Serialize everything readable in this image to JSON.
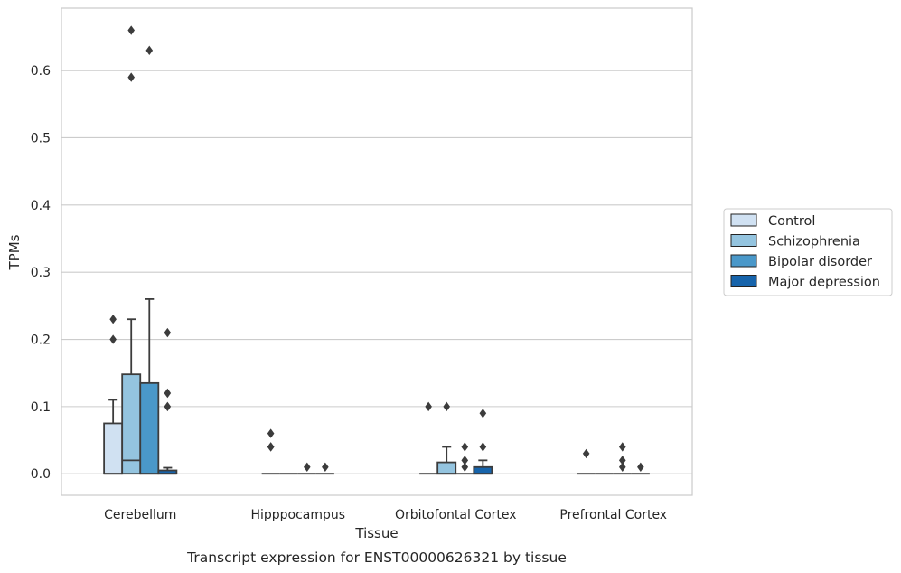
{
  "chart_data": {
    "type": "box",
    "title": "",
    "caption": "Transcript expression for ENST00000626321 by tissue",
    "xlabel": "Tissue",
    "ylabel": "TPMs",
    "ylim": [
      -0.032,
      0.693
    ],
    "yticks": [
      "0.0",
      "0.1",
      "0.2",
      "0.3",
      "0.4",
      "0.5",
      "0.6"
    ],
    "grid": "horizontal",
    "legend_position": "right",
    "categories": [
      "Cerebellum",
      "Hipppocampus",
      "Orbitofontal Cortex",
      "Prefrontal Cortex"
    ],
    "series": [
      {
        "name": "Control",
        "color": "#d0e1f2",
        "boxes": [
          {
            "q1": 0,
            "median": 0,
            "q3": 0.075,
            "whisker_low": 0,
            "whisker_high": 0.11,
            "outliers": [
              0.2,
              0.23
            ]
          },
          {
            "q1": 0,
            "median": 0,
            "q3": 0,
            "whisker_low": 0,
            "whisker_high": 0,
            "outliers": [
              0.04,
              0.04,
              0.06
            ]
          },
          {
            "q1": 0,
            "median": 0,
            "q3": 0,
            "whisker_low": 0,
            "whisker_high": 0,
            "outliers": [
              0.1
            ]
          },
          {
            "q1": 0,
            "median": 0,
            "q3": 0,
            "whisker_low": 0,
            "whisker_high": 0,
            "outliers": [
              0.03
            ]
          }
        ]
      },
      {
        "name": "Schizophrenia",
        "color": "#94c4df",
        "boxes": [
          {
            "q1": 0,
            "median": 0.02,
            "q3": 0.148,
            "whisker_low": 0,
            "whisker_high": 0.23,
            "outliers": [
              0.59,
              0.66
            ]
          },
          {
            "q1": 0,
            "median": 0,
            "q3": 0,
            "whisker_low": 0,
            "whisker_high": 0,
            "outliers": []
          },
          {
            "q1": 0,
            "median": 0,
            "q3": 0.017,
            "whisker_low": 0,
            "whisker_high": 0.04,
            "outliers": [
              0.1
            ]
          },
          {
            "q1": 0,
            "median": 0,
            "q3": 0,
            "whisker_low": 0,
            "whisker_high": 0,
            "outliers": []
          }
        ]
      },
      {
        "name": "Bipolar disorder",
        "color": "#4a98c9",
        "boxes": [
          {
            "q1": 0,
            "median": 0,
            "q3": 0.135,
            "whisker_low": 0,
            "whisker_high": 0.26,
            "outliers": [
              0.63
            ]
          },
          {
            "q1": 0,
            "median": 0,
            "q3": 0,
            "whisker_low": 0,
            "whisker_high": 0,
            "outliers": [
              0.01
            ]
          },
          {
            "q1": 0,
            "median": 0,
            "q3": 0,
            "whisker_low": 0,
            "whisker_high": 0,
            "outliers": [
              0.01,
              0.02,
              0.04
            ]
          },
          {
            "q1": 0,
            "median": 0,
            "q3": 0,
            "whisker_low": 0,
            "whisker_high": 0,
            "outliers": [
              0.01,
              0.02,
              0.04
            ]
          }
        ]
      },
      {
        "name": "Major depression",
        "color": "#1764ab",
        "boxes": [
          {
            "q1": 0,
            "median": 0,
            "q3": 0.005,
            "whisker_low": 0,
            "whisker_high": 0.009,
            "outliers": [
              0.1,
              0.12,
              0.21
            ]
          },
          {
            "q1": 0,
            "median": 0,
            "q3": 0,
            "whisker_low": 0,
            "whisker_high": 0,
            "outliers": [
              0.01
            ]
          },
          {
            "q1": 0,
            "median": 0,
            "q3": 0.01,
            "whisker_low": 0,
            "whisker_high": 0.02,
            "outliers": [
              0.04,
              0.09
            ]
          },
          {
            "q1": 0,
            "median": 0,
            "q3": 0,
            "whisker_low": 0,
            "whisker_high": 0,
            "outliers": [
              0.01
            ]
          }
        ]
      }
    ]
  }
}
